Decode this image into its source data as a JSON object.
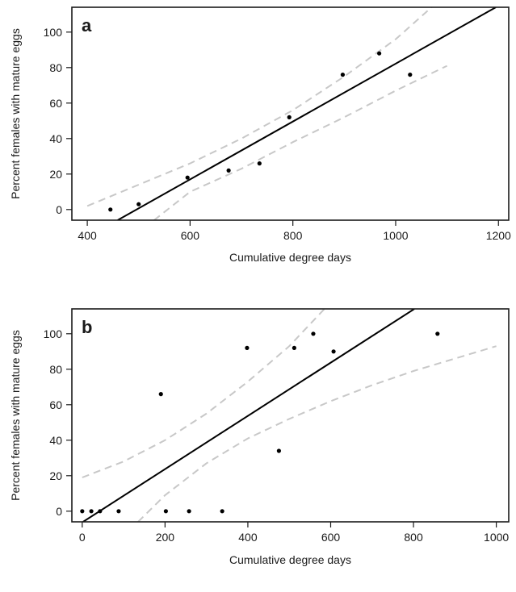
{
  "chart_data": [
    {
      "type": "scatter",
      "panel_label": "a",
      "xlabel": "Cumulative degree days",
      "ylabel": "Percent females with mature eggs",
      "xlim": [
        370,
        1220
      ],
      "ylim": [
        -6,
        114
      ],
      "xticks": [
        400,
        600,
        800,
        1000,
        1200
      ],
      "yticks": [
        0,
        20,
        40,
        60,
        80,
        100
      ],
      "grid": false,
      "colors": {
        "points": "#000000",
        "fit": "#000000",
        "ci": "#c8c8c8"
      },
      "points": [
        {
          "x": 445,
          "y": 0
        },
        {
          "x": 500,
          "y": 3
        },
        {
          "x": 595,
          "y": 18
        },
        {
          "x": 675,
          "y": 22
        },
        {
          "x": 735,
          "y": 26
        },
        {
          "x": 793,
          "y": 52
        },
        {
          "x": 897,
          "y": 76
        },
        {
          "x": 968,
          "y": 88
        },
        {
          "x": 1028,
          "y": 76
        }
      ],
      "fit_line": [
        [
          459,
          -6
        ],
        [
          1195,
          114
        ]
      ],
      "ci_upper": [
        [
          400,
          2
        ],
        [
          500,
          14
        ],
        [
          600,
          26
        ],
        [
          700,
          40
        ],
        [
          800,
          56
        ],
        [
          900,
          75
        ],
        [
          1000,
          96
        ],
        [
          1070,
          114
        ]
      ],
      "ci_lower": [
        [
          530,
          -6
        ],
        [
          600,
          10
        ],
        [
          700,
          23
        ],
        [
          800,
          38
        ],
        [
          900,
          52
        ],
        [
          1000,
          67
        ],
        [
          1100,
          81
        ]
      ]
    },
    {
      "type": "scatter",
      "panel_label": "b",
      "xlabel": "Cumulative degree days",
      "ylabel": "Percent females with mature eggs",
      "xlim": [
        -25,
        1030
      ],
      "ylim": [
        -6,
        114
      ],
      "xticks": [
        0,
        200,
        400,
        600,
        800,
        1000
      ],
      "yticks": [
        0,
        20,
        40,
        60,
        80,
        100
      ],
      "grid": false,
      "colors": {
        "points": "#000000",
        "fit": "#000000",
        "ci": "#c8c8c8"
      },
      "points": [
        {
          "x": 0,
          "y": 0
        },
        {
          "x": 22,
          "y": 0
        },
        {
          "x": 43,
          "y": 0
        },
        {
          "x": 88,
          "y": 0
        },
        {
          "x": 190,
          "y": 66
        },
        {
          "x": 202,
          "y": 0
        },
        {
          "x": 258,
          "y": 0
        },
        {
          "x": 338,
          "y": 0
        },
        {
          "x": 398,
          "y": 92
        },
        {
          "x": 475,
          "y": 34
        },
        {
          "x": 512,
          "y": 92
        },
        {
          "x": 558,
          "y": 100
        },
        {
          "x": 607,
          "y": 90
        },
        {
          "x": 858,
          "y": 100
        }
      ],
      "fit_line": [
        [
          2,
          -6
        ],
        [
          802,
          114
        ]
      ],
      "ci_upper": [
        [
          0,
          19
        ],
        [
          100,
          28
        ],
        [
          200,
          40
        ],
        [
          300,
          55
        ],
        [
          400,
          73
        ],
        [
          500,
          93
        ],
        [
          585,
          114
        ]
      ],
      "ci_lower": [
        [
          135,
          -6
        ],
        [
          200,
          9
        ],
        [
          300,
          27
        ],
        [
          400,
          41
        ],
        [
          500,
          52
        ],
        [
          600,
          62
        ],
        [
          700,
          71
        ],
        [
          800,
          79
        ],
        [
          900,
          86
        ],
        [
          1000,
          93
        ]
      ]
    }
  ]
}
